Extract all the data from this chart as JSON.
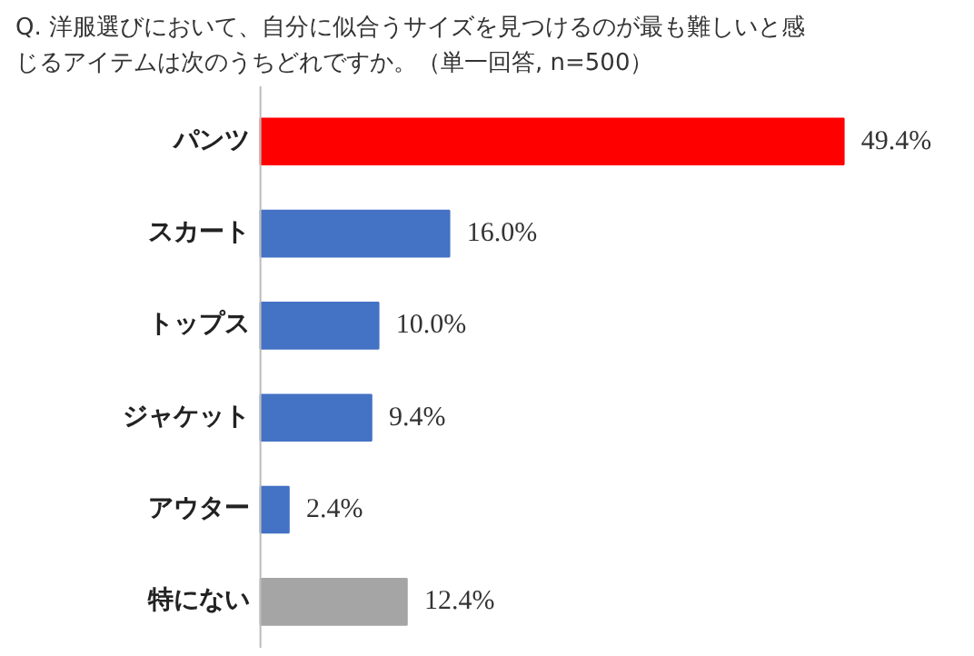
{
  "chart_data": {
    "type": "bar",
    "orientation": "horizontal",
    "title": "Q. 洋服選びにおいて、自分に似合うサイズを見つけるのが最も難しいと感じるアイテムは次のうちどれですか。（単一回答, n=500）",
    "categories": [
      "パンツ",
      "スカート",
      "トップス",
      "ジャケット",
      "アウター",
      "特にない"
    ],
    "values": [
      49.4,
      16.0,
      10.0,
      9.4,
      2.4,
      12.4
    ],
    "colors": [
      "#ff0000",
      "#4472c4",
      "#4472c4",
      "#4472c4",
      "#4472c4",
      "#a5a5a5"
    ],
    "value_labels": [
      "49.4%",
      "16.0%",
      "10.0%",
      "9.4%",
      "2.4%",
      "12.4%"
    ],
    "grid": false
  }
}
